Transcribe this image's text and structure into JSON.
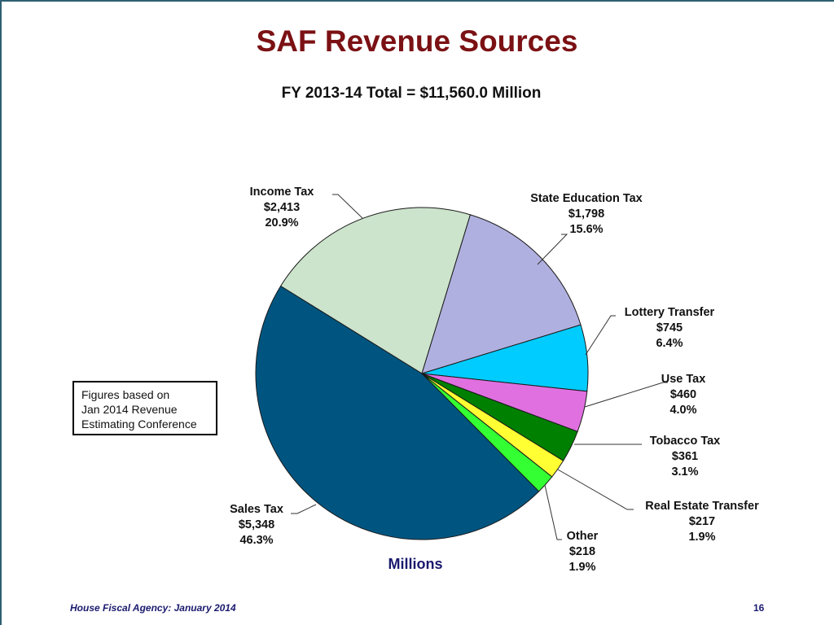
{
  "slide": {
    "title": "SAF Revenue Sources",
    "subtitle": "FY 2013-14 Total = $11,560.0 Million",
    "note_lines": [
      "Figures based on",
      "Jan 2014 Revenue",
      "Estimating Conference"
    ],
    "footer_left": "House Fiscal Agency:  January 2014",
    "page_number": "16"
  },
  "chart_data": {
    "type": "pie",
    "title": "SAF Revenue Sources",
    "subtitle": "FY 2013-14 Total = $11,560.0 Million",
    "unit_label": "Millions",
    "total": 11560.0,
    "slices": [
      {
        "name": "Income Tax",
        "value": 2413,
        "value_label": "$2,413",
        "percent": 20.9,
        "percent_label": "20.9%",
        "color": "#cce3cc"
      },
      {
        "name": "State Education Tax",
        "value": 1798,
        "value_label": "$1,798",
        "percent": 15.6,
        "percent_label": "15.6%",
        "color": "#b0b0e0"
      },
      {
        "name": "Lottery Transfer",
        "value": 745,
        "value_label": "$745",
        "percent": 6.4,
        "percent_label": "6.4%",
        "color": "#00ccff"
      },
      {
        "name": "Use Tax",
        "value": 460,
        "value_label": "$460",
        "percent": 4.0,
        "percent_label": "4.0%",
        "color": "#e070e0"
      },
      {
        "name": "Tobacco Tax",
        "value": 361,
        "value_label": "$361",
        "percent": 3.1,
        "percent_label": "3.1%",
        "color": "#008000"
      },
      {
        "name": "Real Estate Transfer",
        "value": 217,
        "value_label": "$217",
        "percent": 1.9,
        "percent_label": "1.9%",
        "color": "#ffff33"
      },
      {
        "name": "Other",
        "value": 218,
        "value_label": "$218",
        "percent": 1.9,
        "percent_label": "1.9%",
        "color": "#33ff33"
      },
      {
        "name": "Sales Tax",
        "value": 5348,
        "value_label": "$5,348",
        "percent": 46.3,
        "percent_label": "46.3%",
        "color": "#005580"
      }
    ],
    "start_slice": "Income Tax",
    "direction": "clockwise",
    "legend": "none (direct labels)"
  }
}
